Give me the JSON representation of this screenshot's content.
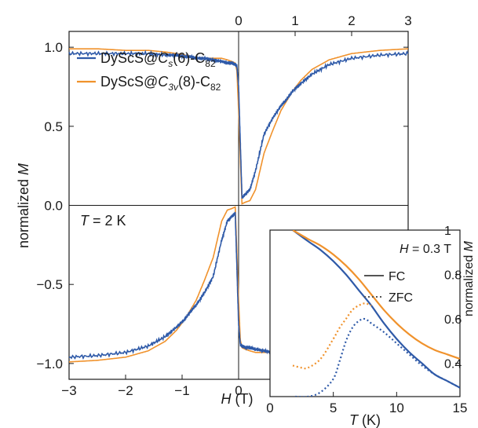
{
  "colors": {
    "blue": "#2f5aa8",
    "orange": "#f0922c",
    "axis": "#1a1a1a"
  },
  "main_chart": {
    "type": "line",
    "xlabel_var": "H",
    "xlabel_unit": " (T)",
    "ylabel_text": "normalized ",
    "ylabel_var": "M",
    "xlim": [
      -3,
      3
    ],
    "ylim": [
      -1.1,
      1.1
    ],
    "xticks": [
      -3,
      -2,
      -1,
      0
    ],
    "xtick_labels": [
      "−3",
      "−2",
      "−1",
      "0"
    ],
    "top_ticks": [
      0,
      1,
      2,
      3
    ],
    "top_tick_labels": [
      "0",
      "1",
      "2",
      "3"
    ],
    "yticks": [
      -1.0,
      -0.5,
      0.0,
      0.5,
      1.0
    ],
    "ytick_labels": [
      "−1.0",
      "−0.5",
      "0.0",
      "0.5",
      "1.0"
    ],
    "annotation_var": "T",
    "annotation_rest": " = 2 K",
    "legend": [
      {
        "pre": "DyScS@",
        "ital": "C",
        "sub1": "s",
        "mid": "(6)-C",
        "sub2": "82",
        "color": "#2f5aa8"
      },
      {
        "pre": "DyScS@",
        "ital": "C",
        "sub1": "3v",
        "mid": "(8)-C",
        "sub2": "82",
        "color": "#f0922c"
      }
    ]
  },
  "inset_chart": {
    "type": "line",
    "xlabel_var": "T",
    "xlabel_unit": " (K)",
    "ylabel_text": "normalized ",
    "ylabel_var": "M",
    "xlim": [
      0,
      15
    ],
    "ylim": [
      0.25,
      1.0
    ],
    "xticks": [
      0,
      5,
      10,
      15
    ],
    "xtick_labels": [
      "0",
      "5",
      "10",
      "15"
    ],
    "yticks": [
      0.4,
      0.6,
      0.8,
      1.0
    ],
    "ytick_labels": [
      "0.4",
      "0.6",
      "0.8",
      "1"
    ],
    "annotation_var": "H",
    "annotation_rest": " = 0.3 T",
    "legend": [
      {
        "label": "FC",
        "style": "solid"
      },
      {
        "label": "ZFC",
        "style": "dotted"
      }
    ]
  },
  "chart_data": [
    {
      "type": "line",
      "title": "",
      "xlabel": "H (T)",
      "ylabel": "normalized M",
      "xlim": [
        -3,
        3
      ],
      "ylim": [
        -1.1,
        1.1
      ],
      "legend_position": "top-left",
      "series": [
        {
          "name": "DyScS@Cs(6)-C82",
          "color": "#2f5aa8",
          "x": [
            -3.0,
            -2.5,
            -2.0,
            -1.6,
            -1.3,
            -1.1,
            -0.95,
            -0.85,
            -0.75,
            -0.6,
            -0.45,
            -0.3,
            -0.2,
            -0.12,
            -0.06,
            -0.03,
            0.0,
            0.03,
            0.06,
            0.12,
            0.2,
            0.3,
            0.45,
            0.6,
            0.75,
            0.85,
            0.95,
            1.1,
            1.3,
            1.6,
            2.0,
            2.5,
            3.0
          ],
          "y_sweep_down": [
            -0.96,
            -0.95,
            -0.93,
            -0.89,
            -0.83,
            -0.77,
            -0.72,
            -0.67,
            -0.63,
            -0.55,
            -0.45,
            -0.22,
            -0.1,
            -0.07,
            -0.05,
            -0.4,
            -0.75,
            -0.88,
            -0.89,
            -0.9,
            -0.9,
            -0.91,
            -0.92,
            -0.93,
            -0.93,
            -0.94,
            -0.94,
            -0.95,
            -0.95,
            -0.96,
            -0.96,
            -0.96,
            -0.96
          ],
          "y_sweep_up": [
            0.96,
            0.96,
            0.96,
            0.96,
            0.95,
            0.95,
            0.94,
            0.94,
            0.93,
            0.93,
            0.92,
            0.91,
            0.9,
            0.9,
            0.89,
            0.88,
            0.75,
            0.4,
            0.05,
            0.07,
            0.1,
            0.22,
            0.45,
            0.55,
            0.63,
            0.67,
            0.72,
            0.77,
            0.83,
            0.89,
            0.93,
            0.95,
            0.96
          ]
        },
        {
          "name": "DyScS@C3v(8)-C82",
          "color": "#f0922c",
          "x": [
            -3.0,
            -2.5,
            -2.0,
            -1.6,
            -1.3,
            -1.1,
            -0.95,
            -0.85,
            -0.75,
            -0.6,
            -0.45,
            -0.3,
            -0.2,
            -0.12,
            -0.06,
            -0.03,
            0.0,
            0.03,
            0.06,
            0.12,
            0.2,
            0.3,
            0.45,
            0.6,
            0.75,
            0.85,
            0.95,
            1.1,
            1.3,
            1.6,
            2.0,
            2.5,
            3.0
          ],
          "y_sweep_down": [
            -0.99,
            -0.98,
            -0.96,
            -0.92,
            -0.86,
            -0.79,
            -0.72,
            -0.66,
            -0.6,
            -0.47,
            -0.33,
            -0.1,
            -0.03,
            -0.02,
            -0.01,
            -0.3,
            -0.6,
            -0.85,
            -0.9,
            -0.91,
            -0.92,
            -0.93,
            -0.93,
            -0.93,
            -0.93,
            -0.94,
            -0.95,
            -0.96,
            -0.97,
            -0.98,
            -0.98,
            -0.99,
            -0.99
          ],
          "y_sweep_up": [
            0.99,
            0.99,
            0.98,
            0.98,
            0.97,
            0.96,
            0.95,
            0.94,
            0.93,
            0.93,
            0.93,
            0.93,
            0.92,
            0.91,
            0.9,
            0.85,
            0.6,
            0.3,
            0.01,
            0.02,
            0.03,
            0.1,
            0.33,
            0.47,
            0.6,
            0.66,
            0.72,
            0.79,
            0.86,
            0.92,
            0.96,
            0.98,
            0.99
          ]
        }
      ]
    },
    {
      "type": "line",
      "title": "",
      "xlabel": "T (K)",
      "ylabel": "normalized M",
      "xlim": [
        0,
        15
      ],
      "ylim": [
        0.25,
        1.0
      ],
      "legend_position": "top-right",
      "series": [
        {
          "name": "Cs(6) FC",
          "color": "#2f5aa8",
          "style": "solid",
          "x": [
            1.8,
            3,
            4,
            5,
            6,
            7,
            8,
            9,
            10,
            11,
            12,
            13,
            14,
            15
          ],
          "y": [
            1.0,
            0.95,
            0.91,
            0.86,
            0.8,
            0.73,
            0.66,
            0.58,
            0.51,
            0.45,
            0.4,
            0.35,
            0.32,
            0.29
          ]
        },
        {
          "name": "C3v(8) FC",
          "color": "#f0922c",
          "style": "solid",
          "x": [
            1.8,
            3,
            4,
            5,
            6,
            7,
            8,
            9,
            10,
            11,
            12,
            13,
            14,
            15
          ],
          "y": [
            1.0,
            0.96,
            0.93,
            0.89,
            0.84,
            0.78,
            0.71,
            0.64,
            0.58,
            0.53,
            0.49,
            0.46,
            0.44,
            0.42
          ]
        },
        {
          "name": "Cs(6) ZFC",
          "color": "#2f5aa8",
          "style": "dotted",
          "x": [
            2,
            3,
            4,
            5,
            5.5,
            6,
            6.5,
            7,
            7.5,
            8,
            9,
            10,
            11,
            12,
            13,
            14,
            15
          ],
          "y": [
            0.25,
            0.25,
            0.27,
            0.33,
            0.41,
            0.5,
            0.56,
            0.59,
            0.6,
            0.58,
            0.54,
            0.49,
            0.44,
            0.39,
            0.35,
            0.32,
            0.29
          ]
        },
        {
          "name": "C3v(8) ZFC",
          "color": "#f0922c",
          "style": "dotted",
          "x": [
            1.8,
            2.5,
            3,
            4,
            5,
            5.5,
            6,
            6.5,
            7,
            7.5,
            8
          ],
          "y": [
            0.39,
            0.38,
            0.38,
            0.42,
            0.51,
            0.56,
            0.6,
            0.64,
            0.66,
            0.67,
            0.66
          ]
        }
      ]
    }
  ]
}
